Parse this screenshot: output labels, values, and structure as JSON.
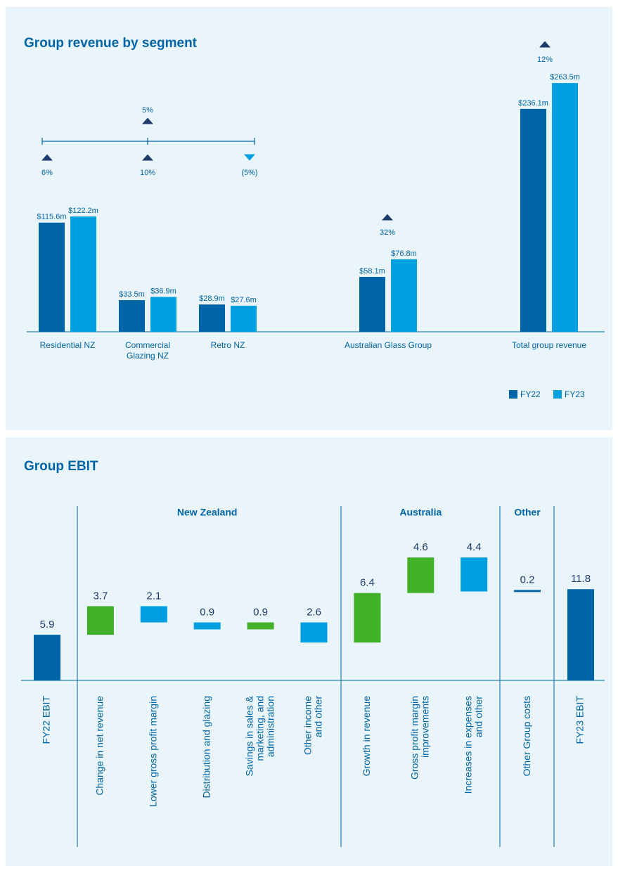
{
  "chart_data": [
    {
      "type": "bar",
      "title": "Group revenue by segment",
      "categories": [
        "Residential NZ",
        [
          "Commercial",
          "Glazing NZ"
        ],
        "Retro NZ",
        "Australian Glass Group",
        "Total group revenue"
      ],
      "series": [
        {
          "name": "FY22",
          "color": "#0065a8",
          "values": [
            115.6,
            33.5,
            28.9,
            58.1,
            236.1
          ],
          "value_labels": [
            "$115.6m",
            "$33.5m",
            "$28.9m",
            "$58.1m",
            "$236.1m"
          ]
        },
        {
          "name": "FY23",
          "color": "#00a0e0",
          "values": [
            122.2,
            36.9,
            27.6,
            76.8,
            263.5
          ],
          "value_labels": [
            "$122.2m",
            "$36.9m",
            "$27.6m",
            "$76.8m",
            "$263.5m"
          ]
        }
      ],
      "change_labels": [
        "6%",
        "10%",
        "(5%)",
        "32%",
        "12%"
      ],
      "change_directions": [
        "up",
        "up",
        "down",
        "up",
        "up"
      ],
      "group_change_label": "5%",
      "group_change_direction": "up",
      "legend": "bottom-right"
    },
    {
      "type": "waterfall",
      "title": "Group EBIT",
      "categories": [
        "FY22 EBIT",
        "Change in net revenue",
        "Lower gross profit margin",
        "Distribution and glazing",
        [
          "Savings in sales &",
          "marketing, and",
          "administration"
        ],
        [
          "Other income",
          "and other"
        ],
        "Growth in revenue",
        [
          "Gross profit margin",
          "improvements"
        ],
        [
          "Increases in expenses",
          "and other"
        ],
        "Other Group costs",
        "FY23 EBIT"
      ],
      "values": [
        5.9,
        3.7,
        -2.1,
        -0.9,
        0.9,
        -2.6,
        6.4,
        4.6,
        -4.4,
        0.2,
        11.8
      ],
      "value_labels": [
        "5.9",
        "3.7",
        "2.1",
        "0.9",
        "0.9",
        "2.6",
        "6.4",
        "4.6",
        "4.4",
        "0.2",
        "11.8"
      ],
      "measures": [
        "absolute",
        "relative",
        "relative",
        "relative",
        "relative",
        "relative",
        "relative",
        "relative",
        "relative",
        "relative",
        "absolute"
      ],
      "colors": [
        "#0065a8",
        "#43b02a",
        "#00a0e0",
        "#00a0e0",
        "#43b02a",
        "#00a0e0",
        "#43b02a",
        "#43b02a",
        "#00a0e0",
        "#0065a8",
        "#0065a8"
      ],
      "groups": [
        {
          "name": "New Zealand",
          "start": 1,
          "end": 5
        },
        {
          "name": "Australia",
          "start": 6,
          "end": 8
        },
        {
          "name": "Other",
          "start": 9,
          "end": 9
        }
      ]
    }
  ]
}
